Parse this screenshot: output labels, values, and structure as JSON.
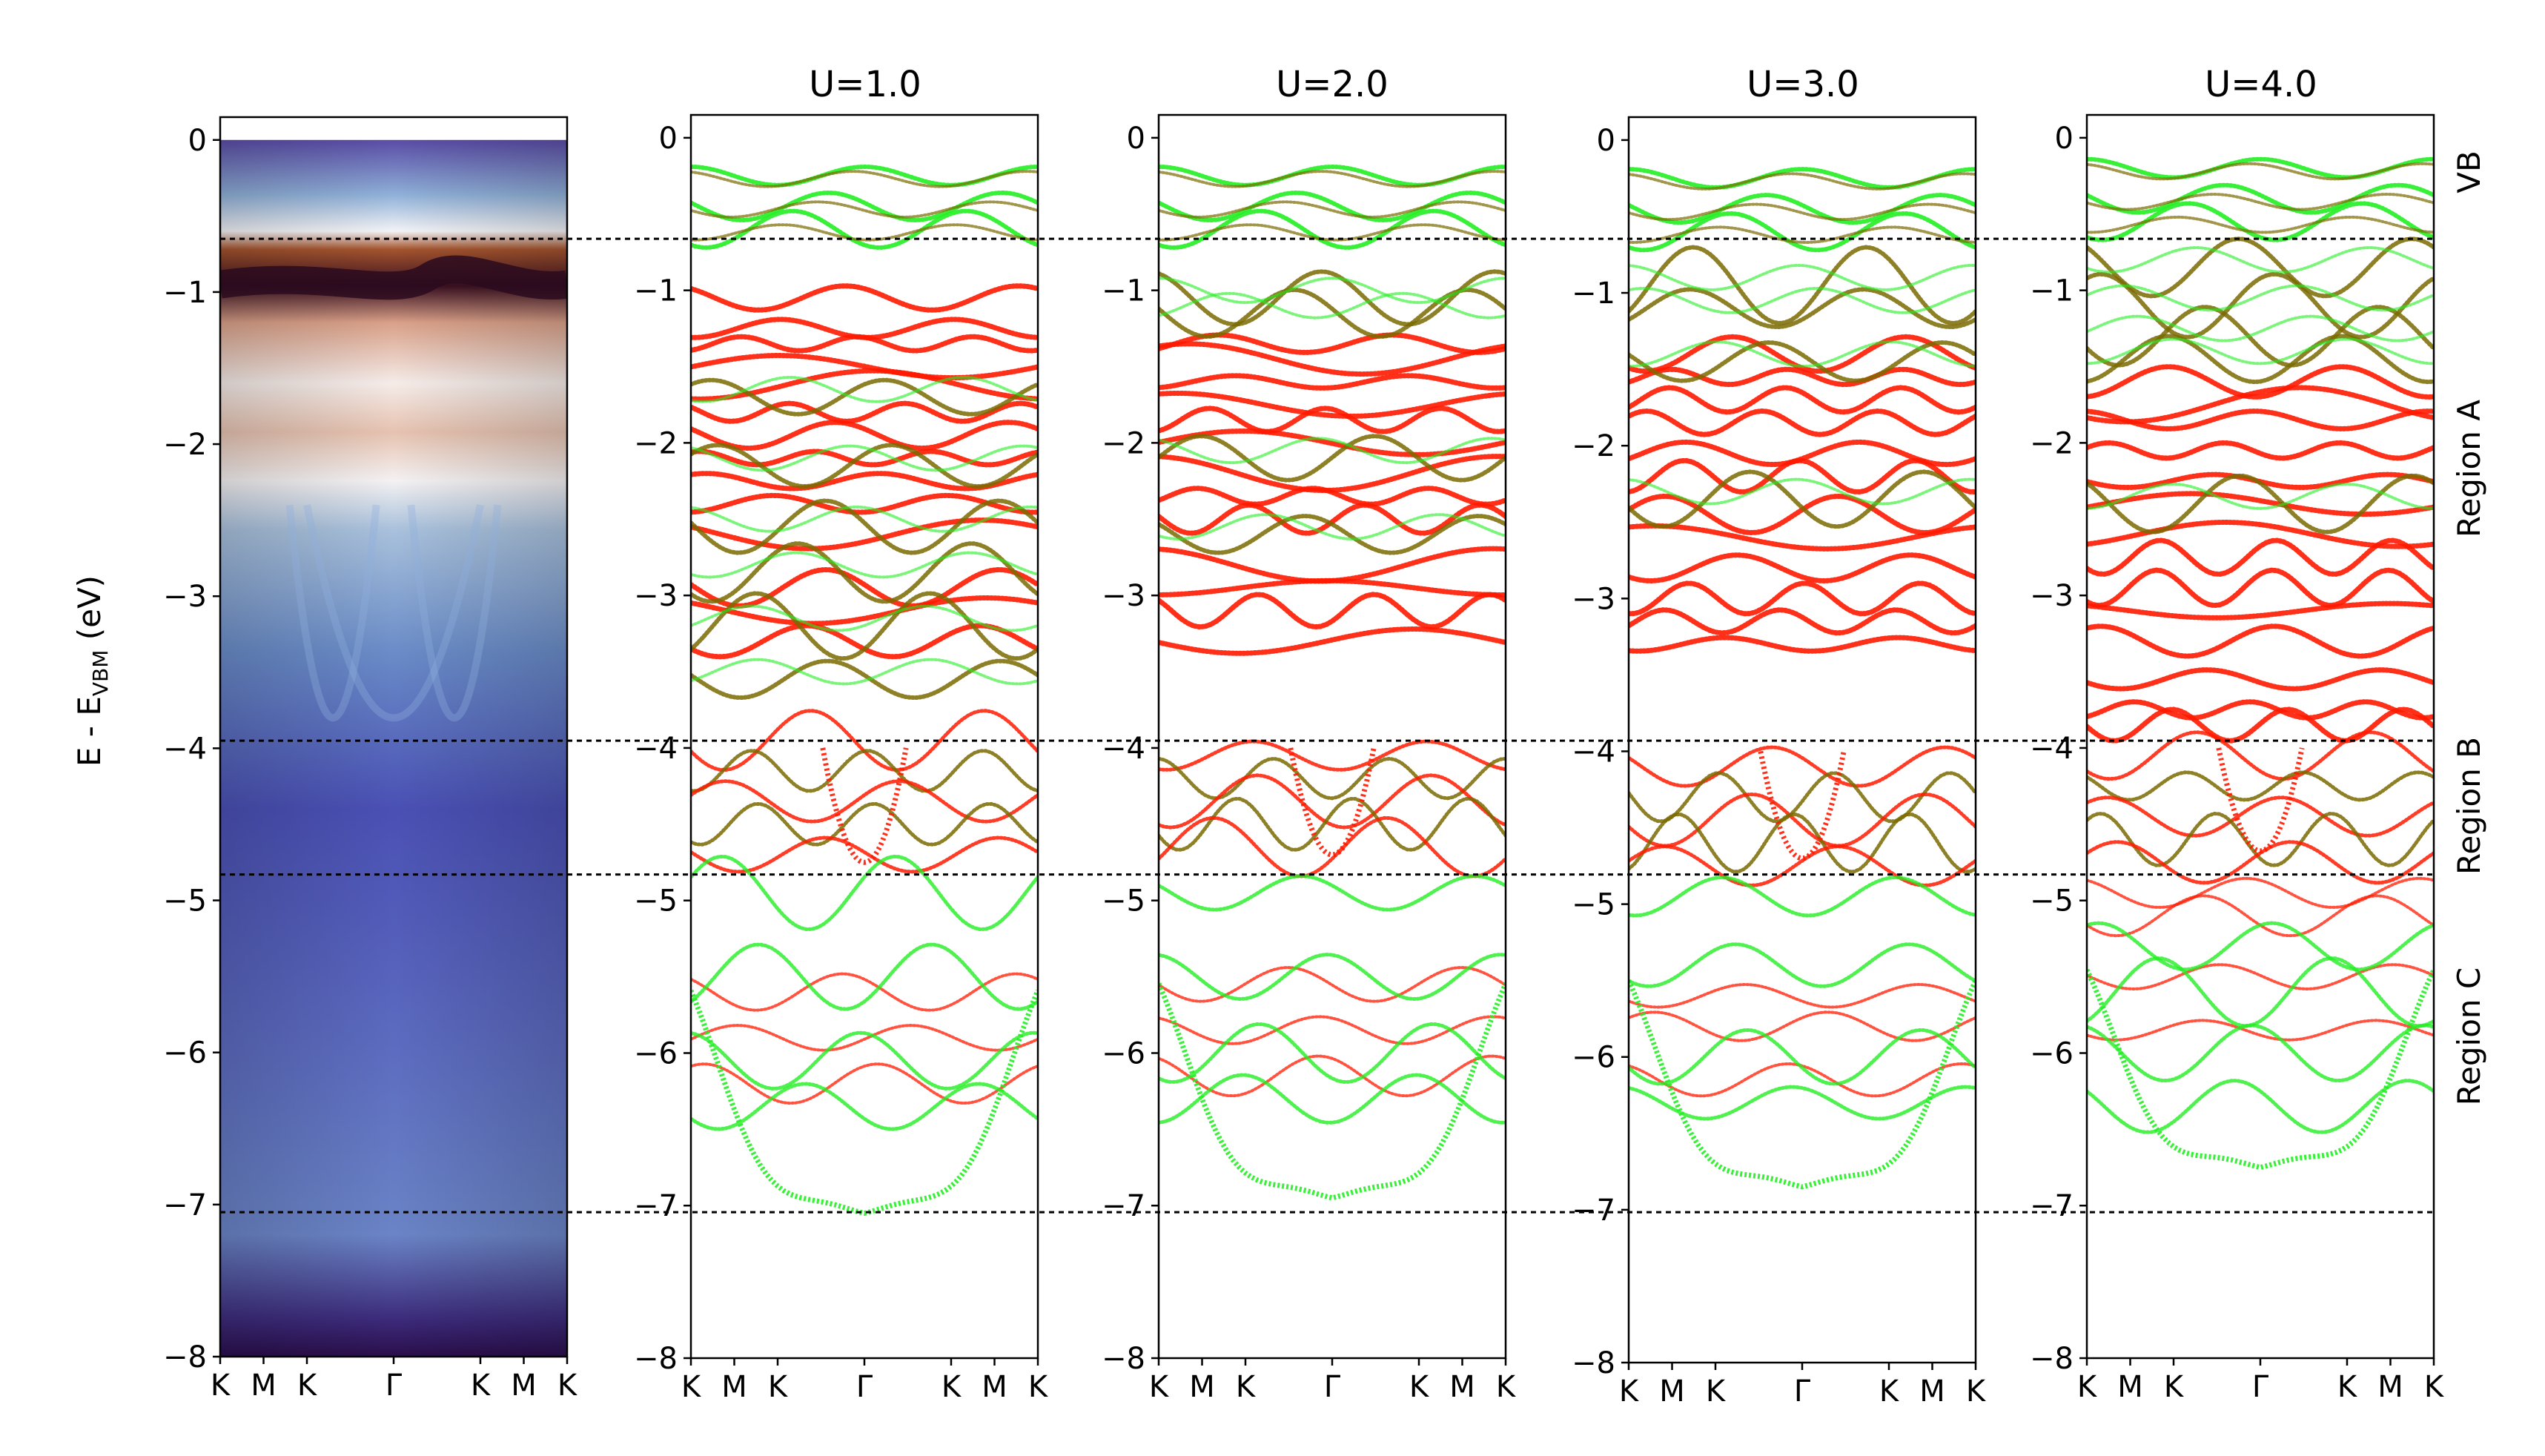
{
  "chart_data": {
    "type": "line",
    "ylabel_main": "E - E",
    "ylabel_sub": "VBM",
    "ylabel_unit": " (eV)",
    "ylim": [
      -8,
      0.15
    ],
    "yticks": [
      0,
      -1,
      -2,
      -3,
      -4,
      -5,
      -6,
      -7,
      -8
    ],
    "ytick_labels": [
      "0",
      "−1",
      "−2",
      "−3",
      "−4",
      "−5",
      "−6",
      "−7",
      "−8"
    ],
    "kpath": [
      "K",
      "M",
      "K",
      "Γ",
      "K",
      "M",
      "K"
    ],
    "kpath_positions": [
      0,
      0.125,
      0.25,
      0.5,
      0.75,
      0.875,
      1.0
    ],
    "panels": [
      {
        "title": "",
        "kind": "arpes"
      },
      {
        "title": "U=1.0",
        "kind": "bands"
      },
      {
        "title": "U=2.0",
        "kind": "bands"
      },
      {
        "title": "U=3.0",
        "kind": "bands"
      },
      {
        "title": "U=4.0",
        "kind": "bands"
      }
    ],
    "reference_lines": [
      -0.65,
      -3.95,
      -4.83,
      -7.05
    ],
    "regions": [
      {
        "label": "VB",
        "range": [
          0,
          -0.65
        ]
      },
      {
        "label": "Region A",
        "range": [
          -0.65,
          -3.95
        ]
      },
      {
        "label": "Region B",
        "range": [
          -3.95,
          -4.83
        ]
      },
      {
        "label": "Region C",
        "range": [
          -4.83,
          -7.05
        ]
      }
    ],
    "colors": {
      "red": "#ff1a00",
      "green": "#22ee22",
      "olive": "#7a6a00",
      "arpes_dark": "#2a0e4a",
      "arpes_blue": "#4a5ec4",
      "arpes_brown": "#8a3a1a"
    },
    "band_sets": {
      "U=1.0": {
        "vb": {
          "centers": [
            -0.25,
            -0.45,
            -0.6
          ],
          "color": "green"
        },
        "regionA_red": [
          -1.05,
          -1.25,
          -1.35,
          -1.5,
          -1.62,
          -1.8,
          -1.95,
          -2.1,
          -2.25,
          -2.4,
          -2.6,
          -2.95,
          -3.1,
          -3.3
        ],
        "regionA_olive": [
          -1.7,
          -2.15,
          -2.55,
          -2.85,
          -3.2,
          -3.55
        ],
        "regionB": [
          -3.95,
          -4.15,
          -4.35,
          -4.5,
          -4.7
        ],
        "regionC_green": [
          -4.95,
          -5.5,
          -6.05,
          -6.35
        ],
        "regionC_red": [
          -5.6,
          -5.9,
          -6.2
        ],
        "gamma_min": -7.05,
        "gamma_dip": -4.9
      },
      "U=2.0": {
        "vb": {
          "centers": [
            -0.25,
            -0.45,
            -0.6
          ],
          "color": "green"
        },
        "regionA_red": [
          -1.35,
          -1.45,
          -1.6,
          -1.75,
          -1.85,
          -2.0,
          -2.2,
          -2.35,
          -2.5,
          -2.8,
          -2.95,
          -3.1,
          -3.3
        ],
        "regionA_olive": [
          -1.05,
          -1.15,
          -2.1,
          -2.6
        ],
        "regionB": [
          -4.05,
          -4.2,
          -4.35,
          -4.5,
          -4.65
        ],
        "regionC_green": [
          -4.95,
          -5.5,
          -6.0,
          -6.3
        ],
        "regionC_red": [
          -5.55,
          -5.85,
          -6.15
        ],
        "gamma_min": -6.95,
        "gamma_dip": -4.8
      },
      "U=3.0": {
        "vb": {
          "centers": [
            -0.25,
            -0.45,
            -0.6
          ],
          "color": "green"
        },
        "regionA_red": [
          -1.4,
          -1.55,
          -1.7,
          -1.85,
          -2.05,
          -2.2,
          -2.45,
          -2.6,
          -2.8,
          -3.0,
          -3.15,
          -3.3
        ],
        "regionA_olive": [
          -0.95,
          -1.1,
          -1.45,
          -2.35
        ],
        "regionB": [
          -4.1,
          -4.3,
          -4.45,
          -4.6,
          -4.75
        ],
        "regionC_green": [
          -4.95,
          -5.4,
          -6.0,
          -6.3
        ],
        "regionC_red": [
          -5.6,
          -5.8,
          -6.15
        ],
        "gamma_min": -6.85,
        "gamma_dip": -4.8
      },
      "U=4.0": {
        "vb": {
          "centers": [
            -0.2,
            -0.4,
            -0.55
          ],
          "color": "green"
        },
        "regionA_red": [
          -1.6,
          -1.75,
          -1.85,
          -2.05,
          -2.25,
          -2.4,
          -2.6,
          -2.75,
          -2.95,
          -3.1,
          -3.3,
          -3.55,
          -3.75,
          -3.85
        ],
        "regionA_olive": [
          -0.85,
          -1.1,
          -1.3,
          -1.45,
          -2.4
        ],
        "regionB": [
          -4.05,
          -4.25,
          -4.45,
          -4.6,
          -4.75
        ],
        "regionC_green": [
          -5.3,
          -5.6,
          -6.0,
          -6.35
        ],
        "regionC_red": [
          -4.95,
          -5.1,
          -5.5,
          -5.85
        ],
        "gamma_min": -6.75,
        "gamma_dip": -4.75
      }
    }
  }
}
